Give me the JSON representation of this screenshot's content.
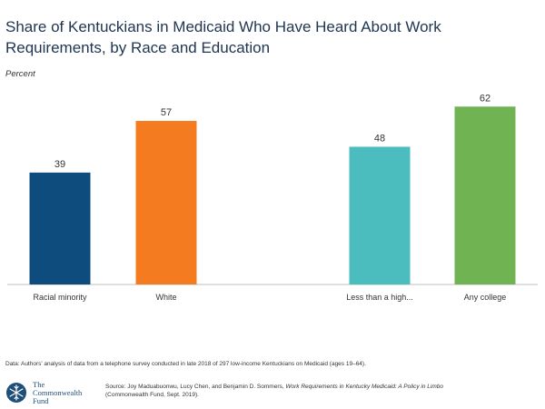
{
  "title": "Share of Kentuckians in Medicaid Who Have Heard About Work Requirements, by Race and Education",
  "subtitle": "Percent",
  "chart_data": {
    "type": "bar",
    "title": "Share of Kentuckians in Medicaid Who Have Heard About Work Requirements, by Race and Education",
    "ylabel": "Percent",
    "xlabel": "",
    "ylim": [
      0,
      70
    ],
    "grid": false,
    "categories": [
      "Racial minority",
      "White",
      "Less than a high...",
      "Any college"
    ],
    "values": [
      39,
      57,
      48,
      62
    ],
    "colors": [
      "#0e4c7e",
      "#f47b20",
      "#4bbdbf",
      "#70b352"
    ],
    "groups": [
      [
        "Racial minority",
        "White"
      ],
      [
        "Less than a high...",
        "Any college"
      ]
    ]
  },
  "note": "Data: Authors' analysis of data from a telephone survey conducted in late 2018 of 297 low-income Kentuckians on Medicaid (ages 19–64).",
  "source": {
    "prefix": "Source: Joy Maduabuonwu, Lucy Chen, and Benjamin D. Sommers, ",
    "title_italic": "Work Requirements in Kentucky Medicaid: A Policy in Limbo",
    "suffix": "(Commonwealth Fund, Sept. 2019)."
  },
  "logo": {
    "line1": "The",
    "line2": "Commonwealth",
    "line3": "Fund",
    "icon": "snowflake-seal-icon",
    "color": "#1f4e79"
  }
}
